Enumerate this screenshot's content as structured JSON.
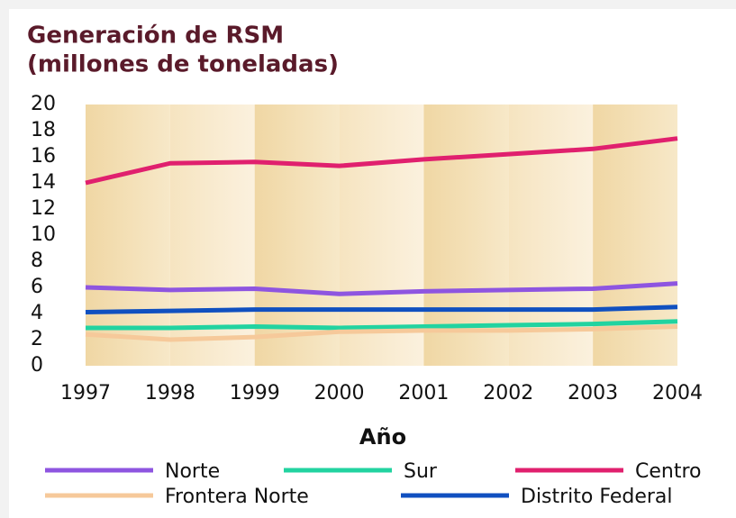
{
  "chart_data": {
    "type": "line",
    "title": "Generación de RSM",
    "subtitle": "(millones de toneladas)",
    "x_label": "Año",
    "categories": [
      "1997",
      "1998",
      "1999",
      "2000",
      "2001",
      "2002",
      "2003",
      "2004"
    ],
    "series": [
      {
        "name": "Norte",
        "color": "#8e55e0",
        "values": [
          6.0,
          5.8,
          5.9,
          5.5,
          5.7,
          5.8,
          5.9,
          6.3
        ]
      },
      {
        "name": "Sur",
        "color": "#22d3a0",
        "values": [
          2.9,
          2.9,
          3.0,
          2.9,
          3.0,
          3.1,
          3.2,
          3.4
        ]
      },
      {
        "name": "Centro",
        "color": "#e0206e",
        "values": [
          14.0,
          15.5,
          15.6,
          15.3,
          15.8,
          16.2,
          16.6,
          17.4
        ]
      },
      {
        "name": "Frontera Norte",
        "color": "#f6c99a",
        "values": [
          2.4,
          2.0,
          2.2,
          2.6,
          2.7,
          2.7,
          2.8,
          3.0
        ]
      },
      {
        "name": "Distrito Federal",
        "color": "#1050c0",
        "values": [
          4.1,
          4.2,
          4.3,
          4.3,
          4.3,
          4.3,
          4.3,
          4.5
        ]
      }
    ],
    "ylim": [
      0,
      20
    ],
    "yticks": [
      0,
      2,
      4,
      6,
      8,
      10,
      12,
      14,
      16,
      18,
      20
    ]
  }
}
